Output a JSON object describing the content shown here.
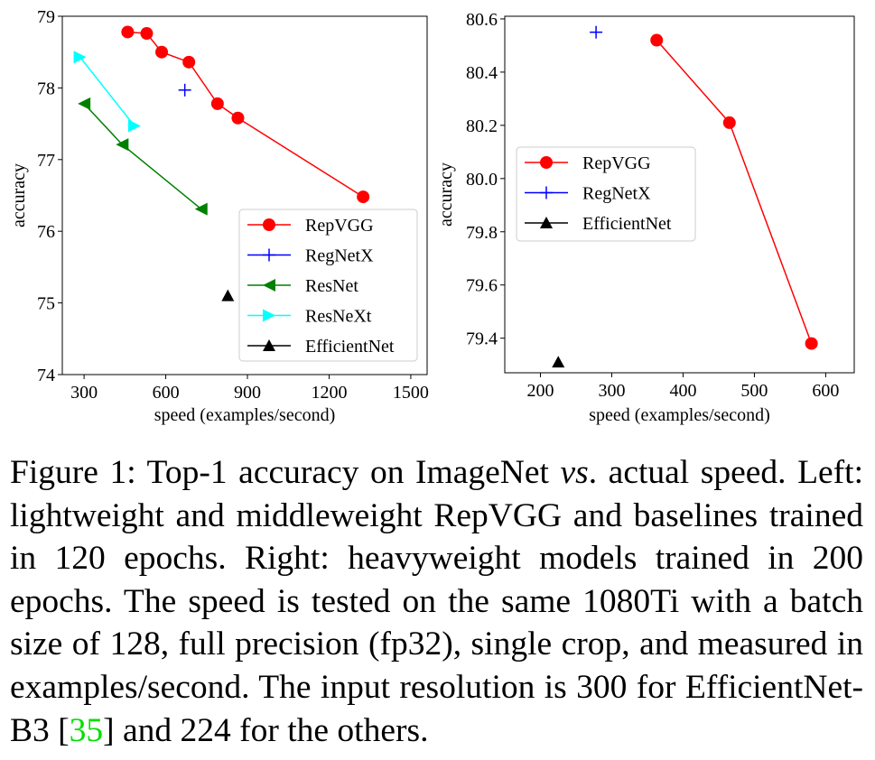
{
  "chart_data": [
    {
      "type": "line",
      "xlabel": "speed (examples/second)",
      "ylabel": "accuracy",
      "xlim": [
        220,
        1560
      ],
      "ylim": [
        74,
        79
      ],
      "xticks": [
        300,
        600,
        900,
        1200,
        1500
      ],
      "yticks": [
        74,
        75,
        76,
        77,
        78,
        79
      ],
      "legend_position": "lower-right",
      "series": [
        {
          "name": "RepVGG",
          "color": "#ff0000",
          "marker": "circle",
          "x": [
            460,
            530,
            585,
            685,
            790,
            865,
            1325
          ],
          "y": [
            78.78,
            78.76,
            78.5,
            78.36,
            77.78,
            77.58,
            76.48
          ]
        },
        {
          "name": "RegNetX",
          "color": "#0000ff",
          "marker": "plus",
          "x": [
            670
          ],
          "y": [
            77.97
          ]
        },
        {
          "name": "ResNet",
          "color": "#008000",
          "marker": "triangle-left",
          "x": [
            300,
            440,
            730
          ],
          "y": [
            77.78,
            77.21,
            76.31
          ]
        },
        {
          "name": "ResNeXt",
          "color": "#00ffff",
          "marker": "triangle-right",
          "x": [
            285,
            485
          ],
          "y": [
            78.43,
            77.47
          ]
        },
        {
          "name": "EfficientNet",
          "color": "#000000",
          "marker": "triangle-up",
          "x": [
            828
          ],
          "y": [
            75.1
          ]
        }
      ]
    },
    {
      "type": "line",
      "xlabel": "speed (examples/second)",
      "ylabel": "accuracy",
      "xlim": [
        150,
        640
      ],
      "ylim": [
        79.27,
        80.61
      ],
      "xticks": [
        200,
        300,
        400,
        500,
        600
      ],
      "yticks": [
        79.4,
        79.6,
        79.8,
        80.0,
        80.2,
        80.4,
        80.6
      ],
      "legend_position": "center-left",
      "series": [
        {
          "name": "RepVGG",
          "color": "#ff0000",
          "marker": "circle",
          "x": [
            363,
            465,
            580
          ],
          "y": [
            80.52,
            80.21,
            79.38
          ]
        },
        {
          "name": "RegNetX",
          "color": "#0000ff",
          "marker": "plus",
          "x": [
            278
          ],
          "y": [
            80.55
          ]
        },
        {
          "name": "EfficientNet",
          "color": "#000000",
          "marker": "triangle-up",
          "x": [
            225
          ],
          "y": [
            79.31
          ]
        }
      ]
    }
  ],
  "caption": {
    "p1": "Figure 1:  Top-1 accuracy on ImageNet ",
    "vs": "vs",
    "p2": ". actual speed. Left: lightweight and middleweight RepVGG and baselines trained in 120 epochs. Right: heavyweight models trained in 200 epochs. The speed is tested on the same 1080Ti with a batch size of 128, full precision (fp32), single crop, and measured in examples/second. The input resolution is 300 for EfficientNet-B3 [",
    "cite": "35",
    "p3": "] and 224 for the others."
  }
}
